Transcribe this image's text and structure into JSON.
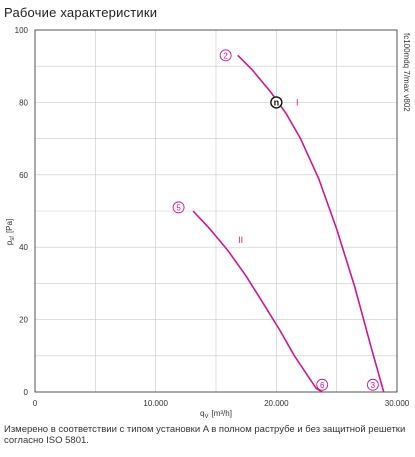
{
  "title": "Рабочие характеристики",
  "footnote": "Измерено в соответствии с типом установки A в полном раструбе и без защитной решетки согласно ISO 5801.",
  "chart_data": {
    "type": "line",
    "xlabel": "q",
    "xlabel_sub": "V",
    "xlabel_unit": "[m³/h]",
    "ylabel": "p",
    "ylabel_sub": "sf",
    "ylabel_unit": "[Pa]",
    "xlim": [
      0,
      30000
    ],
    "ylim": [
      0,
      100
    ],
    "x_ticks": [
      0,
      10000,
      20000,
      30000
    ],
    "x_tick_labels": [
      "0",
      "10.000",
      "20.000",
      "30.000"
    ],
    "y_ticks": [
      0,
      20,
      40,
      60,
      80,
      100
    ],
    "y_tick_labels": [
      "0",
      "20",
      "40",
      "60",
      "80",
      "100"
    ],
    "grid": true,
    "side_label": "fc100mdq 7/max v802",
    "curve_color": "#d0178f",
    "series": [
      {
        "name": "I",
        "x": [
          16800,
          18000,
          19500,
          20800,
          22000,
          23500,
          25000,
          26500,
          27800,
          28900
        ],
        "y": [
          93,
          89,
          83,
          77,
          70,
          59,
          45,
          29,
          13,
          0
        ]
      },
      {
        "name": "II",
        "x": [
          13100,
          14500,
          16000,
          17500,
          19000,
          20300,
          21500,
          22500,
          23300,
          23800
        ],
        "y": [
          50,
          45,
          39,
          32,
          24,
          17,
          10,
          5,
          1,
          0
        ]
      }
    ],
    "markers": [
      {
        "label": "2",
        "x": 15800,
        "y": 93
      },
      {
        "label": "3",
        "x": 28000,
        "y": 2
      },
      {
        "label": "5",
        "x": 11900,
        "y": 51
      },
      {
        "label": "6",
        "x": 23800,
        "y": 2
      }
    ],
    "operating_point": {
      "label": "n",
      "x": 20000,
      "y": 80
    }
  }
}
